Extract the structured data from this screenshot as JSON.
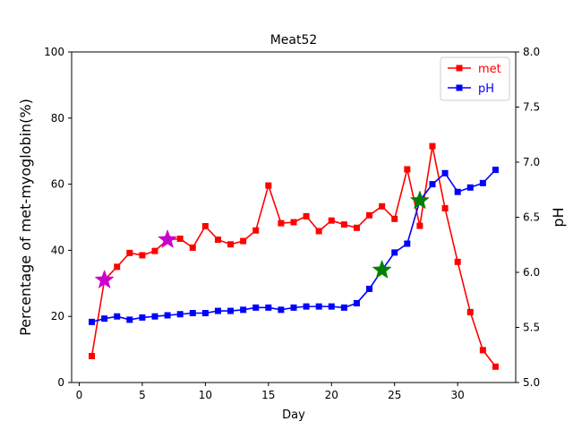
{
  "chart_data": {
    "type": "line",
    "title": "Meat52",
    "xlabel": "Day",
    "ylabel_left": "Percentage of met-myoglobin(%)",
    "ylabel_right": "pH",
    "xlim": [
      -0.6,
      34.6
    ],
    "ylim_left": [
      0,
      100
    ],
    "ylim_right": [
      5.0,
      8.0
    ],
    "xticks": [
      0,
      5,
      10,
      15,
      20,
      25,
      30
    ],
    "yticks_left": [
      0,
      20,
      40,
      60,
      80,
      100
    ],
    "yticks_right": [
      "5.0",
      "5.5",
      "6.0",
      "6.5",
      "7.0",
      "7.5",
      "8.0"
    ],
    "grid": false,
    "legend_position": "top-right",
    "x": [
      1,
      2,
      3,
      4,
      5,
      6,
      7,
      8,
      9,
      10,
      11,
      12,
      13,
      14,
      15,
      16,
      17,
      18,
      19,
      20,
      21,
      22,
      23,
      24,
      25,
      26,
      27,
      28,
      29,
      30,
      31,
      32,
      33
    ],
    "series": [
      {
        "name": "met",
        "axis": "left",
        "color": "#ff0000",
        "marker": "square",
        "values": [
          8.0,
          31.0,
          35.0,
          39.2,
          38.5,
          39.8,
          43.2,
          43.5,
          40.8,
          47.3,
          43.2,
          41.8,
          42.8,
          46.0,
          59.6,
          48.2,
          48.5,
          50.3,
          45.8,
          49.0,
          47.8,
          46.8,
          50.6,
          53.3,
          49.5,
          64.5,
          47.4,
          71.5,
          52.7,
          36.5,
          21.3,
          9.8,
          4.8
        ]
      },
      {
        "name": "pH",
        "axis": "right",
        "color": "#0000ff",
        "marker": "square",
        "values": [
          5.55,
          5.58,
          5.6,
          5.57,
          5.59,
          5.6,
          5.61,
          5.62,
          5.63,
          5.63,
          5.65,
          5.65,
          5.66,
          5.68,
          5.68,
          5.66,
          5.68,
          5.69,
          5.69,
          5.69,
          5.68,
          5.72,
          5.85,
          6.02,
          6.18,
          6.26,
          6.65,
          6.8,
          6.9,
          6.73,
          6.77,
          6.81,
          6.93
        ]
      }
    ],
    "annotations": [
      {
        "x": 2,
        "y": 31.0,
        "axis": "left",
        "marker": "star",
        "color": "#cc00cc"
      },
      {
        "x": 7,
        "y": 43.2,
        "axis": "left",
        "marker": "star",
        "color": "#cc00cc"
      },
      {
        "x": 24,
        "y": 6.02,
        "axis": "right",
        "marker": "star",
        "color": "#008000"
      },
      {
        "x": 27,
        "y": 6.65,
        "axis": "right",
        "marker": "star",
        "color": "#008000"
      }
    ]
  }
}
